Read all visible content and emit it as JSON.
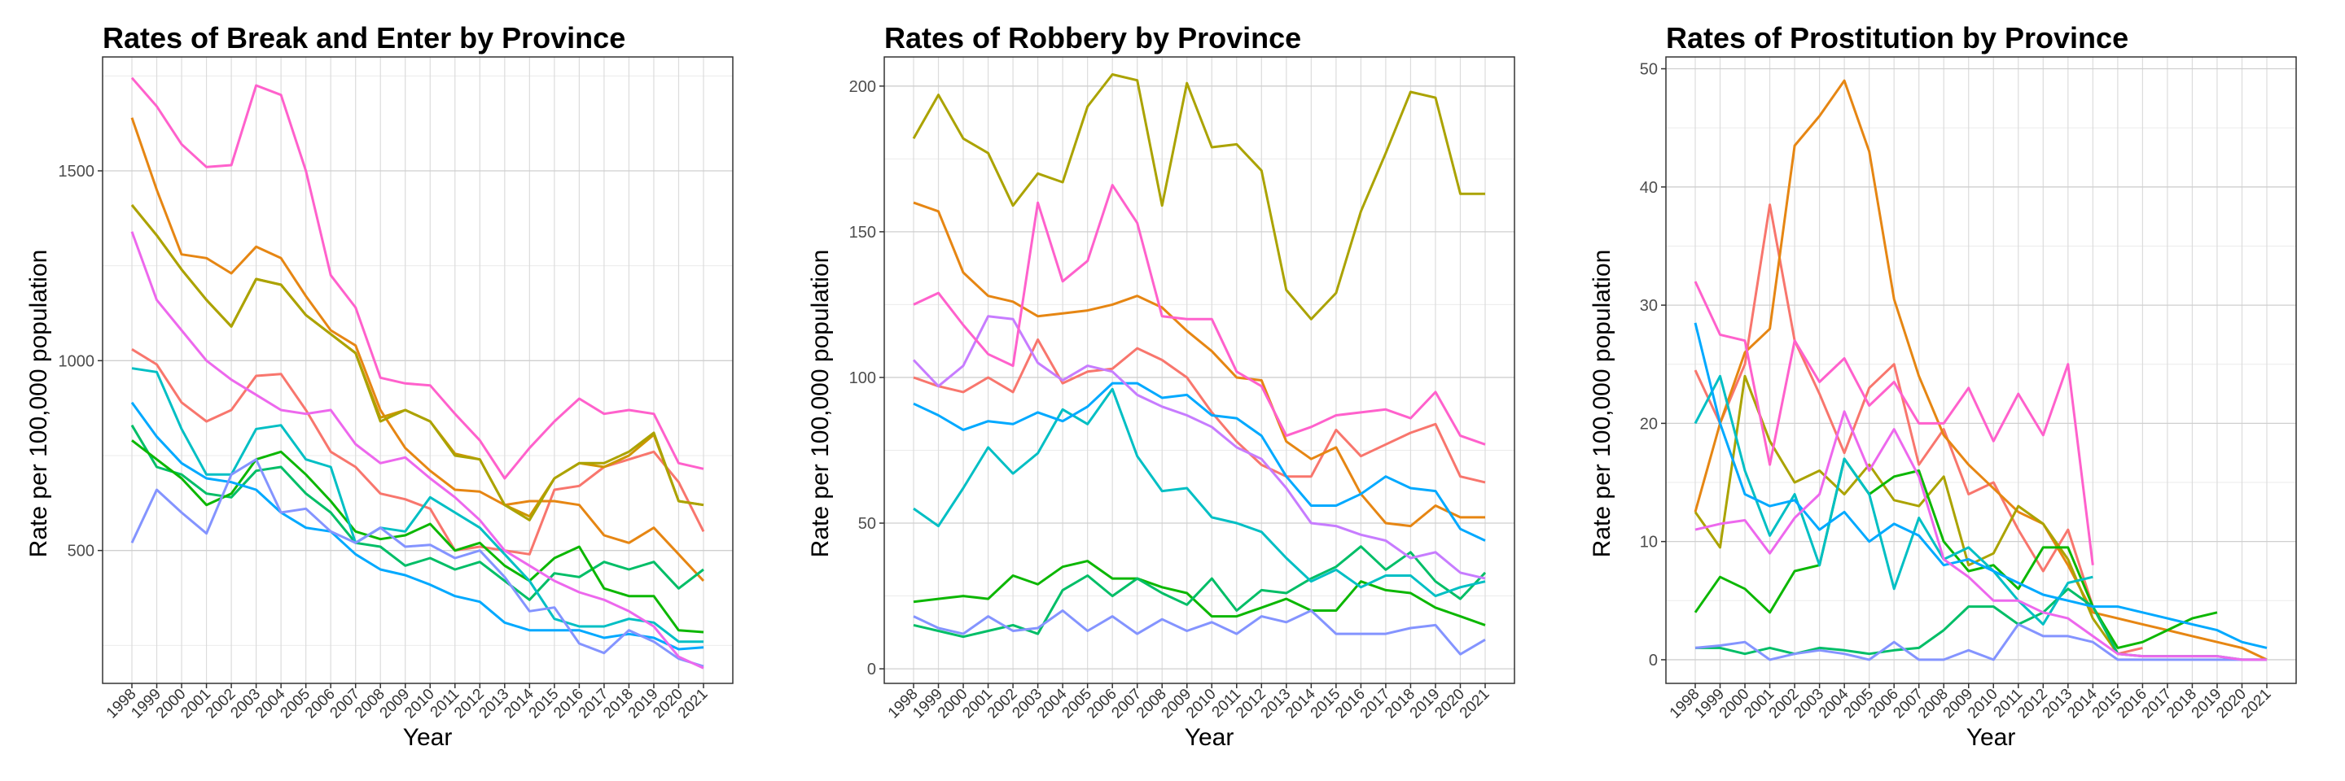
{
  "chart_data": [
    {
      "type": "line",
      "title": "Rates of Break and Enter by Province",
      "xlabel": "Year",
      "ylabel": "Rate per 100,000 population",
      "ylim": [
        150,
        1800
      ],
      "yticks": [
        500,
        1000,
        1500
      ],
      "grid": true,
      "x": [
        "1998",
        "1999",
        "2000",
        "2001",
        "2002",
        "2003",
        "2004",
        "2005",
        "2006",
        "2007",
        "2008",
        "2009",
        "2010",
        "2011",
        "2012",
        "2013",
        "2014",
        "2015",
        "2016",
        "2017",
        "2018",
        "2019",
        "2020",
        "2021"
      ],
      "series": [
        {
          "color": "#F8766D",
          "values": [
            1030,
            990,
            890,
            840,
            870,
            960,
            965,
            870,
            760,
            720,
            650,
            635,
            610,
            500,
            510,
            500,
            490,
            660,
            670,
            720,
            740,
            760,
            680,
            550
          ]
        },
        {
          "color": "#E68613",
          "values": [
            1640,
            1450,
            1280,
            1270,
            1230,
            1300,
            1270,
            1170,
            1080,
            1040,
            870,
            770,
            710,
            660,
            655,
            620,
            630,
            630,
            620,
            540,
            520,
            560,
            490,
            420
          ]
        },
        {
          "color": "#CD9600",
          "values": [
            1410,
            1330,
            1240,
            1160,
            1090,
            1215,
            1200,
            1120,
            1070,
            1020,
            850,
            870,
            840,
            755,
            740,
            620,
            590,
            690,
            730,
            720,
            750,
            805,
            630,
            620
          ]
        },
        {
          "color": "#ABA300",
          "values": [
            1410,
            1330,
            1240,
            1160,
            1090,
            1215,
            1200,
            1120,
            1070,
            1020,
            840,
            870,
            840,
            750,
            740,
            620,
            580,
            690,
            730,
            730,
            760,
            810,
            630,
            620
          ]
        },
        {
          "color": "#00BE67",
          "values": [
            830,
            720,
            700,
            650,
            640,
            710,
            720,
            650,
            600,
            520,
            510,
            460,
            480,
            450,
            470,
            420,
            370,
            440,
            430,
            470,
            450,
            470,
            400,
            450
          ]
        },
        {
          "color": "#0CB702",
          "values": [
            790,
            740,
            690,
            620,
            650,
            740,
            760,
            700,
            630,
            550,
            530,
            540,
            570,
            500,
            520,
            460,
            420,
            480,
            510,
            400,
            380,
            380,
            290,
            285
          ]
        },
        {
          "color": "#00BFC4",
          "values": [
            980,
            970,
            820,
            700,
            700,
            820,
            830,
            740,
            720,
            520,
            560,
            550,
            640,
            600,
            560,
            490,
            420,
            320,
            300,
            300,
            320,
            310,
            260,
            260
          ]
        },
        {
          "color": "#00A9FF",
          "values": [
            890,
            800,
            730,
            690,
            680,
            660,
            600,
            560,
            550,
            490,
            450,
            435,
            410,
            380,
            365,
            310,
            290,
            290,
            290,
            270,
            280,
            270,
            240,
            245
          ]
        },
        {
          "color": "#8494FF",
          "values": [
            520,
            660,
            600,
            545,
            700,
            740,
            600,
            610,
            550,
            520,
            560,
            510,
            515,
            480,
            500,
            430,
            340,
            350,
            255,
            230,
            290,
            260,
            215,
            195
          ]
        },
        {
          "color": "#ED68ED",
          "values": [
            1340,
            1160,
            1080,
            1000,
            950,
            910,
            870,
            860,
            870,
            780,
            730,
            745,
            690,
            640,
            580,
            500,
            460,
            420,
            390,
            370,
            340,
            300,
            220,
            190
          ]
        },
        {
          "color": "#FF61CC",
          "values": [
            1745,
            1670,
            1570,
            1510,
            1515,
            1725,
            1700,
            1500,
            1225,
            1140,
            955,
            940,
            935,
            860,
            790,
            690,
            770,
            840,
            900,
            860,
            870,
            860,
            730,
            715
          ]
        }
      ]
    },
    {
      "type": "line",
      "title": "Rates of Robbery by Province",
      "xlabel": "Year",
      "ylabel": "Rate per 100,000 population",
      "ylim": [
        -5,
        210
      ],
      "yticks": [
        0,
        50,
        100,
        150,
        200
      ],
      "grid": true,
      "x": [
        "1998",
        "1999",
        "2000",
        "2001",
        "2002",
        "2003",
        "2004",
        "2005",
        "2006",
        "2007",
        "2008",
        "2009",
        "2010",
        "2011",
        "2012",
        "2013",
        "2014",
        "2015",
        "2016",
        "2017",
        "2018",
        "2019",
        "2020",
        "2021"
      ],
      "series": [
        {
          "color": "#F8766D",
          "values": [
            100,
            97,
            95,
            100,
            95,
            113,
            98,
            102,
            103,
            110,
            106,
            100,
            88,
            78,
            70,
            66,
            66,
            82,
            73,
            77,
            81,
            84,
            66,
            64
          ]
        },
        {
          "color": "#E68613",
          "values": [
            160,
            157,
            136,
            128,
            126,
            121,
            122,
            123,
            125,
            128,
            124,
            116,
            109,
            100,
            99,
            78,
            72,
            76,
            60,
            50,
            49,
            56,
            52,
            52
          ]
        },
        {
          "color": "#ABA300",
          "values": [
            182,
            197,
            182,
            177,
            159,
            170,
            167,
            193,
            204,
            202,
            159,
            201,
            179,
            180,
            171,
            130,
            120,
            129,
            157,
            177,
            198,
            196,
            163,
            163
          ]
        },
        {
          "color": "#0CB702",
          "values": [
            23,
            24,
            25,
            24,
            32,
            29,
            35,
            37,
            31,
            31,
            28,
            26,
            18,
            18,
            21,
            24,
            20,
            20,
            30,
            27,
            26,
            21,
            18,
            15
          ]
        },
        {
          "color": "#00BE67",
          "values": [
            15,
            13,
            11,
            13,
            15,
            12,
            27,
            32,
            25,
            31,
            26,
            22,
            31,
            20,
            27,
            26,
            31,
            35,
            42,
            34,
            40,
            30,
            24,
            33
          ]
        },
        {
          "color": "#00BFC4",
          "values": [
            55,
            49,
            62,
            76,
            67,
            74,
            89,
            84,
            96,
            73,
            61,
            62,
            52,
            50,
            47,
            38,
            30,
            34,
            28,
            32,
            32,
            25,
            28,
            30
          ]
        },
        {
          "color": "#00A9FF",
          "values": [
            91,
            87,
            82,
            85,
            84,
            88,
            85,
            90,
            98,
            98,
            93,
            94,
            87,
            86,
            80,
            66,
            56,
            56,
            60,
            66,
            62,
            61,
            48,
            44
          ]
        },
        {
          "color": "#8494FF",
          "values": [
            18,
            14,
            12,
            18,
            13,
            14,
            20,
            13,
            18,
            12,
            17,
            13,
            16,
            12,
            18,
            16,
            20,
            12,
            12,
            12,
            14,
            15,
            5,
            10
          ]
        },
        {
          "color": "#C77CFF",
          "values": [
            106,
            97,
            104,
            121,
            120,
            105,
            99,
            104,
            102,
            94,
            90,
            87,
            83,
            76,
            72,
            62,
            50,
            49,
            46,
            44,
            38,
            40,
            33,
            31
          ]
        },
        {
          "color": "#FF61CC",
          "values": [
            125,
            129,
            118,
            108,
            104,
            160,
            133,
            140,
            166,
            153,
            121,
            120,
            120,
            102,
            97,
            80,
            83,
            87,
            88,
            89,
            86,
            95,
            80,
            77
          ]
        }
      ]
    },
    {
      "type": "line",
      "title": "Rates of Prostitution by Province",
      "xlabel": "Year",
      "ylabel": "Rate per 100,000 population",
      "ylim": [
        -2,
        51
      ],
      "yticks": [
        0,
        10,
        20,
        30,
        40,
        50
      ],
      "grid": true,
      "x": [
        "1998",
        "1999",
        "2000",
        "2001",
        "2002",
        "2003",
        "2004",
        "2005",
        "2006",
        "2007",
        "2008",
        "2009",
        "2010",
        "2011",
        "2012",
        "2013",
        "2014",
        "2015",
        "2016",
        "2017",
        "2018",
        "2019",
        "2020",
        "2021"
      ],
      "series": [
        {
          "color": "#F8766D",
          "values": [
            24.5,
            20,
            25,
            38.5,
            27,
            22.5,
            17.5,
            23,
            25,
            16.5,
            19.5,
            14,
            15,
            11,
            7.5,
            11,
            4.5,
            0.5,
            1,
            null,
            null,
            null,
            null,
            null
          ]
        },
        {
          "color": "#E68613",
          "values": [
            12.5,
            20,
            26,
            28,
            43.5,
            46,
            49,
            43,
            30.5,
            24,
            19,
            16.5,
            14.5,
            12.5,
            11.5,
            8,
            4,
            3.5,
            3,
            2.5,
            2,
            1.5,
            1,
            0
          ]
        },
        {
          "color": "#ABA300",
          "values": [
            12.5,
            9.5,
            24,
            18.5,
            15,
            16,
            14,
            16.5,
            13.5,
            13,
            15.5,
            8,
            9,
            13,
            11.5,
            8.5,
            3.5,
            0.5,
            null,
            null,
            null,
            null,
            null,
            null
          ]
        },
        {
          "color": "#0CB702",
          "values": [
            4,
            7,
            6,
            4,
            7.5,
            8,
            17,
            14,
            15.5,
            16,
            10,
            7.5,
            8,
            6,
            9.5,
            9.5,
            4.5,
            1,
            1.5,
            2.5,
            3.5,
            4,
            null,
            null
          ]
        },
        {
          "color": "#00BE67",
          "values": [
            1,
            1,
            0.5,
            1,
            0.5,
            1,
            0.8,
            0.5,
            0.8,
            1,
            2.5,
            4.5,
            4.5,
            3,
            4,
            6,
            4.5,
            0.5,
            0.3,
            0.3,
            0.3,
            0.3,
            0,
            0
          ]
        },
        {
          "color": "#00BFC4",
          "values": [
            20,
            24,
            16,
            10.5,
            14,
            8,
            17,
            14,
            6,
            12,
            8.5,
            9.5,
            7.5,
            5,
            3,
            6.5,
            7,
            null,
            null,
            null,
            null,
            null,
            null,
            null
          ]
        },
        {
          "color": "#00A9FF",
          "values": [
            28.5,
            20,
            14,
            13,
            13.5,
            11,
            12.5,
            10,
            11.5,
            10.5,
            8,
            8.5,
            7.5,
            6.5,
            5.5,
            5,
            4.5,
            4.5,
            4,
            3.5,
            3,
            2.5,
            1.5,
            1
          ]
        },
        {
          "color": "#8494FF",
          "values": [
            1,
            1.2,
            1.5,
            0,
            0.5,
            0.8,
            0.5,
            0,
            1.5,
            0,
            0,
            0.8,
            0,
            3,
            2,
            2,
            1.5,
            0,
            0,
            0,
            0,
            0,
            0,
            0
          ]
        },
        {
          "color": "#ED68ED",
          "values": [
            11,
            11.5,
            11.8,
            9,
            12,
            14,
            21,
            16,
            19.5,
            15.5,
            8.5,
            7,
            5,
            5,
            4,
            3.5,
            2,
            0.5,
            0.3,
            0.3,
            0.3,
            0.3,
            0,
            0
          ]
        },
        {
          "color": "#FF61CC",
          "values": [
            32,
            27.5,
            27,
            16.5,
            27,
            23.5,
            25.5,
            21.5,
            23.5,
            20,
            20,
            23,
            18.5,
            22.5,
            19,
            25,
            8,
            null,
            null,
            null,
            null,
            null,
            null,
            null
          ]
        }
      ]
    }
  ]
}
